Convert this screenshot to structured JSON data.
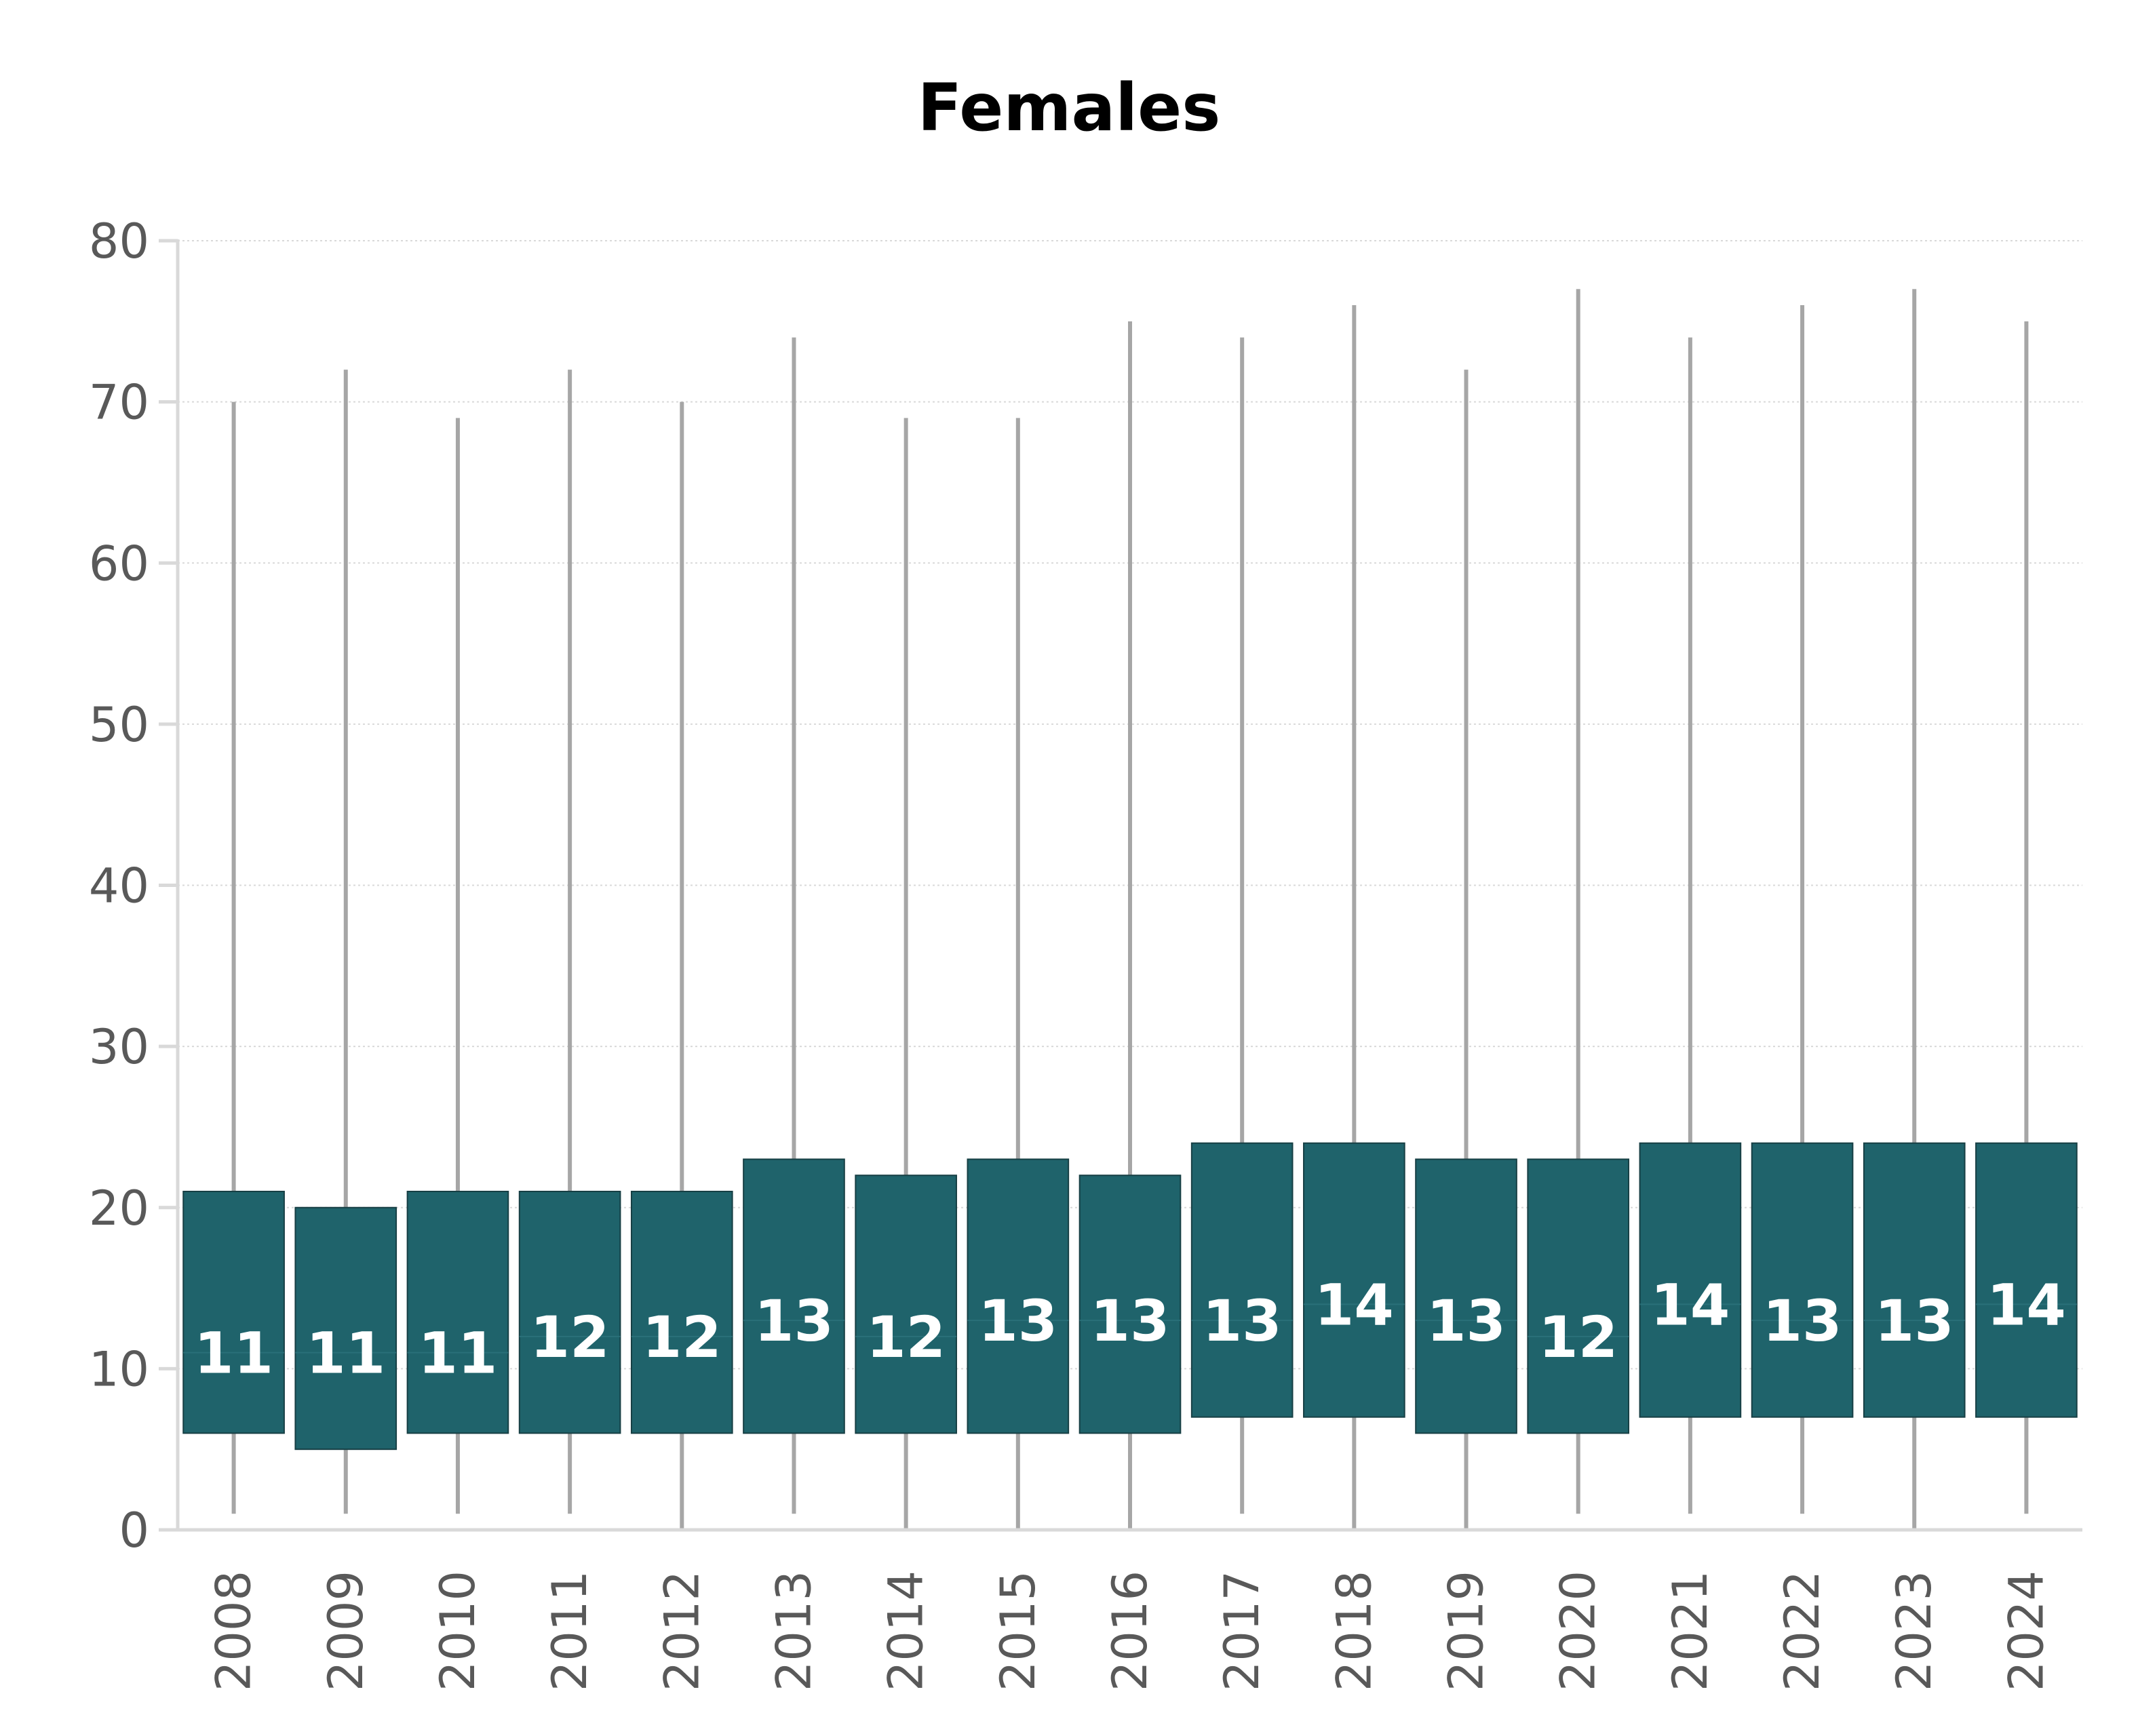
{
  "chart_data": {
    "type": "box",
    "title": "Females",
    "xlabel": "",
    "ylabel": "",
    "ylim": [
      0,
      80
    ],
    "yticks": [
      0,
      10,
      20,
      30,
      40,
      50,
      60,
      70,
      80
    ],
    "grid": true,
    "legend": "none",
    "colors": {
      "box": "#1f636b",
      "whisker": "#a6a6a6",
      "grid": "#d9d9d9",
      "axis": "#d9d9d9",
      "label": "#ffffff"
    },
    "categories": [
      "2008",
      "2009",
      "2010",
      "2011",
      "2012",
      "2013",
      "2014",
      "2015",
      "2016",
      "2017",
      "2018",
      "2019",
      "2020",
      "2021",
      "2022",
      "2023",
      "2024"
    ],
    "min": [
      1,
      1,
      1,
      1,
      0,
      1,
      0,
      0,
      0,
      1,
      0,
      0,
      1,
      1,
      1,
      0,
      1
    ],
    "q1": [
      6,
      5,
      6,
      6,
      6,
      6,
      6,
      6,
      6,
      7,
      7,
      6,
      6,
      7,
      7,
      7,
      7
    ],
    "median": [
      11,
      11,
      11,
      12,
      12,
      13,
      12,
      13,
      13,
      13,
      14,
      13,
      12,
      14,
      13,
      13,
      14
    ],
    "q3": [
      21,
      20,
      21,
      21,
      21,
      23,
      22,
      23,
      22,
      24,
      24,
      23,
      23,
      24,
      24,
      24,
      24
    ],
    "max": [
      70,
      72,
      69,
      72,
      70,
      74,
      69,
      69,
      75,
      74,
      76,
      72,
      77,
      74,
      76,
      77,
      75
    ]
  }
}
